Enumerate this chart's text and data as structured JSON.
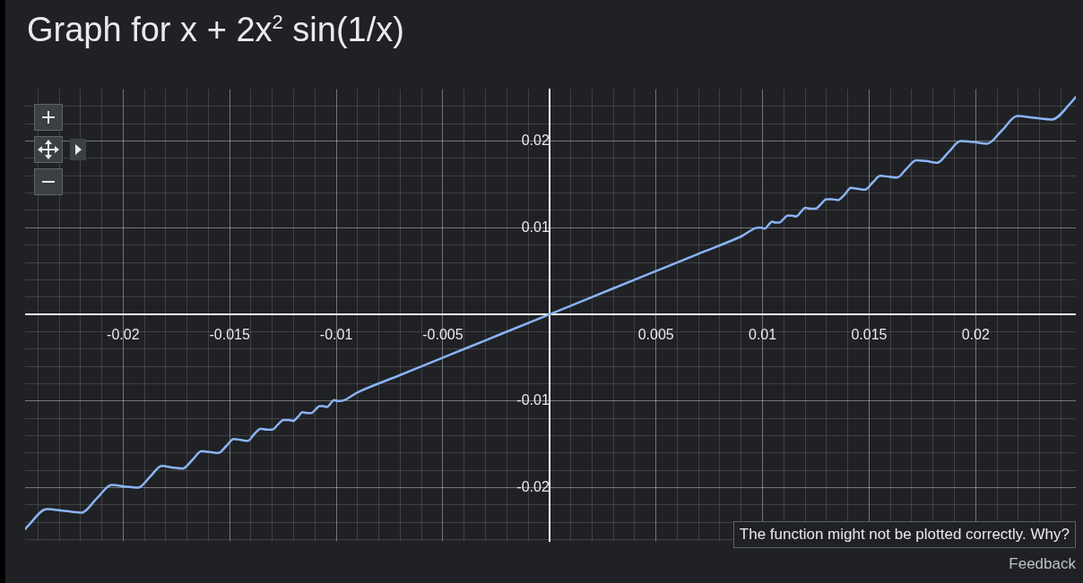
{
  "chart_data": {
    "type": "line",
    "title": "Graph for x + 2x$^{2}$ sin(1/x)",
    "x": [
      -0.0246,
      -0.02449,
      -0.02358,
      -0.02274,
      -0.02195,
      -0.02122,
      -0.02054,
      -0.01989,
      -0.01929,
      -0.01872,
      -0.01819,
      -0.01768,
      -0.01721,
      -0.01675,
      -0.01632,
      -0.01592,
      -0.01553,
      -0.01516,
      -0.01481,
      -0.01447,
      -0.01415,
      -0.01384,
      -0.01354,
      -0.01326,
      -0.01299,
      -0.01273,
      -0.01248,
      -0.01224,
      -0.01201,
      -0.01179,
      -0.01158,
      -0.01137,
      -0.01117,
      -0.01098,
      -0.01079,
      -0.01061,
      -0.01044,
      -0.01027,
      -0.01011,
      -0.00995,
      -0.00979,
      -0.009,
      -0.007,
      -0.005,
      -0.003,
      0,
      0.003,
      0.005,
      0.007,
      0.009,
      0.00979,
      0.00995,
      0.01011,
      0.01027,
      0.01044,
      0.01061,
      0.01079,
      0.01098,
      0.01117,
      0.01137,
      0.01158,
      0.01179,
      0.01201,
      0.01224,
      0.01248,
      0.01273,
      0.01299,
      0.01326,
      0.01354,
      0.01384,
      0.01415,
      0.01447,
      0.01481,
      0.01516,
      0.01553,
      0.01592,
      0.01632,
      0.01675,
      0.01721,
      0.01768,
      0.01819,
      0.01872,
      0.01929,
      0.01989,
      0.02054,
      0.02122,
      0.02195,
      0.02274,
      0.02358,
      0.02449,
      0.0247
    ],
    "series": [
      {
        "color": "#8ab4f8",
        "values": [
          -0.0248,
          -0.0245,
          -0.0225,
          -0.0227,
          -0.0229,
          -0.0212,
          -0.0197,
          -0.0199,
          -0.02,
          -0.0187,
          -0.0175,
          -0.0177,
          -0.0178,
          -0.0168,
          -0.0158,
          -0.0159,
          -0.016,
          -0.0152,
          -0.0144,
          -0.0145,
          -0.0146,
          -0.0138,
          -0.0132,
          -0.0133,
          -0.0133,
          -0.0127,
          -0.0122,
          -0.0122,
          -0.0123,
          -0.0118,
          -0.0113,
          -0.0114,
          -0.0114,
          -0.011,
          -0.0106,
          -0.0106,
          -0.0107,
          -0.0103,
          -0.0099,
          -0.01,
          -0.01,
          -0.009,
          -0.007,
          -0.005,
          -0.003,
          0,
          0.003,
          0.005,
          0.007,
          0.009,
          0.01,
          0.01,
          0.0099,
          0.0103,
          0.0107,
          0.0106,
          0.0106,
          0.011,
          0.0114,
          0.0114,
          0.0113,
          0.0118,
          0.0123,
          0.0122,
          0.0122,
          0.0127,
          0.0133,
          0.0133,
          0.0132,
          0.0138,
          0.0146,
          0.0145,
          0.0144,
          0.0152,
          0.016,
          0.0159,
          0.0158,
          0.0168,
          0.0178,
          0.0177,
          0.0175,
          0.0187,
          0.02,
          0.0199,
          0.0197,
          0.0212,
          0.0229,
          0.0227,
          0.0225,
          0.0245,
          0.0251
        ]
      }
    ],
    "xlim": [
      -0.0246,
      0.0247
    ],
    "ylim": [
      -0.0262,
      0.026
    ],
    "xticks": [
      {
        "value": -0.024,
        "label": null
      },
      {
        "value": -0.023,
        "label": null
      },
      {
        "value": -0.022,
        "label": null
      },
      {
        "value": -0.021,
        "label": null
      },
      -0.02,
      {
        "value": -0.019,
        "label": null
      },
      {
        "value": -0.018,
        "label": null
      },
      {
        "value": -0.017,
        "label": null
      },
      {
        "value": -0.016,
        "label": null
      },
      -0.015,
      {
        "value": -0.014,
        "label": null
      },
      {
        "value": -0.013,
        "label": null
      },
      {
        "value": -0.012,
        "label": null
      },
      {
        "value": -0.011,
        "label": null
      },
      -0.01,
      {
        "value": -0.009,
        "label": null
      },
      {
        "value": -0.008,
        "label": null
      },
      {
        "value": -0.007,
        "label": null
      },
      {
        "value": -0.006,
        "label": null
      },
      -0.005,
      {
        "value": -0.004,
        "label": null
      },
      {
        "value": -0.003,
        "label": null
      },
      {
        "value": -0.002,
        "label": null
      },
      {
        "value": -0.001,
        "label": null
      },
      {
        "value": 0,
        "label": null
      },
      {
        "value": 0.001,
        "label": null
      },
      {
        "value": 0.002,
        "label": null
      },
      {
        "value": 0.003,
        "label": null
      },
      {
        "value": 0.004,
        "label": null
      },
      0.005,
      {
        "value": 0.006,
        "label": null
      },
      {
        "value": 0.007,
        "label": null
      },
      {
        "value": 0.008,
        "label": null
      },
      {
        "value": 0.009,
        "label": null
      },
      0.01,
      {
        "value": 0.011,
        "label": null
      },
      {
        "value": 0.012,
        "label": null
      },
      {
        "value": 0.013,
        "label": null
      },
      {
        "value": 0.014,
        "label": null
      },
      0.015,
      {
        "value": 0.016,
        "label": null
      },
      {
        "value": 0.017,
        "label": null
      },
      {
        "value": 0.018,
        "label": null
      },
      {
        "value": 0.019,
        "label": null
      },
      0.02,
      {
        "value": 0.021,
        "label": null
      },
      {
        "value": 0.022,
        "label": null
      },
      {
        "value": 0.023,
        "label": null
      },
      {
        "value": 0.024,
        "label": null
      }
    ],
    "yticks": [
      {
        "value": -0.026,
        "label": null
      },
      {
        "value": -0.024,
        "label": null
      },
      {
        "value": -0.022,
        "label": null
      },
      -0.02,
      {
        "value": -0.018,
        "label": null
      },
      {
        "value": -0.016,
        "label": null
      },
      {
        "value": -0.014,
        "label": null
      },
      {
        "value": -0.012,
        "label": null
      },
      -0.01,
      {
        "value": -0.008,
        "label": null
      },
      {
        "value": -0.006,
        "label": null
      },
      {
        "value": -0.004,
        "label": null
      },
      {
        "value": -0.002,
        "label": null
      },
      {
        "value": 0,
        "label": null
      },
      {
        "value": 0.002,
        "label": null
      },
      {
        "value": 0.004,
        "label": null
      },
      {
        "value": 0.006,
        "label": null
      },
      {
        "value": 0.008,
        "label": null
      },
      0.01,
      {
        "value": 0.012,
        "label": null
      },
      {
        "value": 0.014,
        "label": null
      },
      {
        "value": 0.016,
        "label": null
      },
      {
        "value": 0.018,
        "label": null
      },
      0.02,
      {
        "value": 0.022,
        "label": null
      },
      {
        "value": 0.024,
        "label": null
      }
    ],
    "grid": true,
    "marker": "none",
    "line_style": "solid",
    "annotations": [
      "The function might not be plotted correctly. Why?",
      "Feedback"
    ]
  }
}
